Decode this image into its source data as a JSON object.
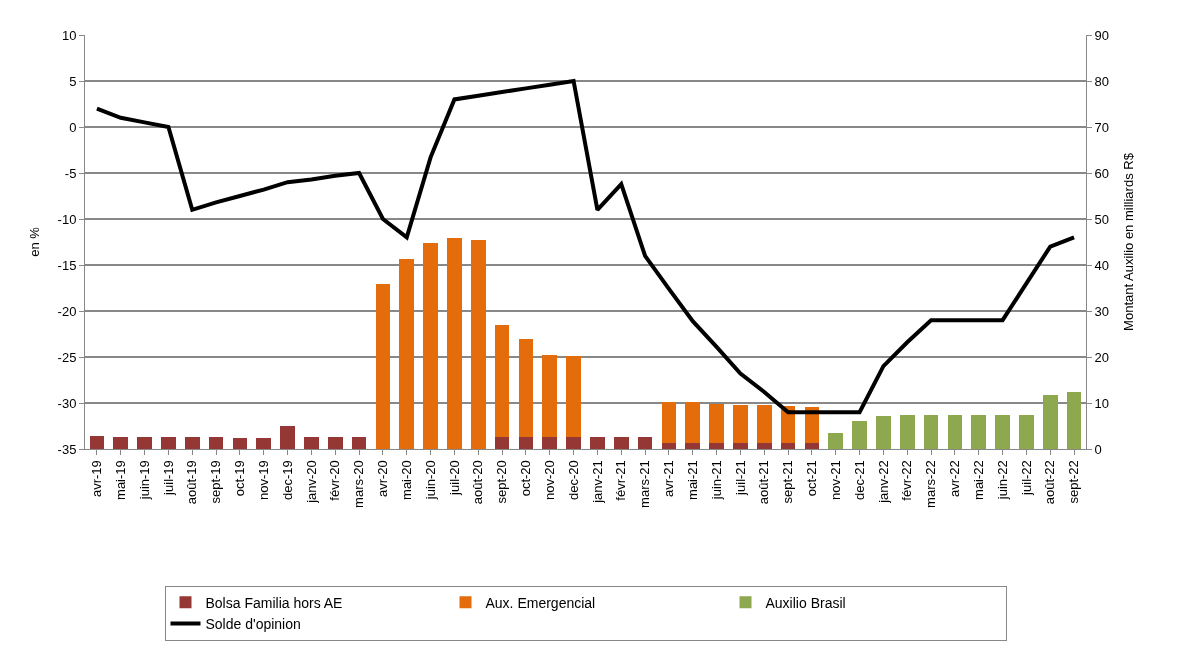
{
  "chart_data": {
    "type": "bar",
    "stacked": true,
    "categories": [
      "avr-19",
      "mai-19",
      "juin-19",
      "juil-19",
      "août-19",
      "sept-19",
      "oct-19",
      "nov-19",
      "dec-19",
      "janv-20",
      "févr-20",
      "mars-20",
      "avr-20",
      "mai-20",
      "juin-20",
      "juil-20",
      "août-20",
      "sept-20",
      "oct-20",
      "nov-20",
      "dec-20",
      "janv-21",
      "févr-21",
      "mars-21",
      "avr-21",
      "mai-21",
      "juin-21",
      "juil-21",
      "août-21",
      "sept-21",
      "oct-21",
      "nov-21",
      "dec-21",
      "janv-22",
      "févr-22",
      "mars-22",
      "avr-22",
      "mai-22",
      "juin-22",
      "juil-22",
      "août-22",
      "sept-22"
    ],
    "series": [
      {
        "name": "Bolsa Familia hors AE",
        "color": "#953735",
        "axis": "y2",
        "values": [
          2.9,
          2.7,
          2.7,
          2.6,
          2.6,
          2.6,
          2.5,
          2.5,
          5.0,
          2.6,
          2.6,
          2.6,
          0.1,
          0.1,
          0,
          0,
          0,
          2.7,
          2.7,
          2.7,
          2.7,
          2.6,
          2.6,
          2.7,
          1.3,
          1.3,
          1.3,
          1.3,
          1.3,
          1.3,
          1.3,
          0,
          0,
          0,
          0,
          0,
          0,
          0,
          0,
          0,
          0,
          0
        ]
      },
      {
        "name": "Aux. Emergencial",
        "color": "#e46c0a",
        "axis": "y2",
        "values": [
          0,
          0,
          0,
          0,
          0,
          0,
          0,
          0,
          0,
          0,
          0,
          0,
          35.8,
          41.1,
          44.7,
          45.9,
          45.5,
          24.2,
          21.2,
          17.7,
          17.5,
          0,
          0,
          0,
          8.9,
          8.9,
          8.5,
          8.3,
          8.3,
          8.1,
          7.9,
          0,
          0,
          0,
          0,
          0,
          0,
          0,
          0,
          0,
          0,
          0
        ]
      },
      {
        "name": "Auxilio Brasil",
        "color": "#8ea84f",
        "axis": "y2",
        "values": [
          0,
          0,
          0,
          0,
          0,
          0,
          0,
          0,
          0,
          0,
          0,
          0,
          0,
          0,
          0,
          0,
          0,
          0,
          0,
          0,
          0,
          0,
          0,
          0,
          0,
          0,
          0,
          0,
          0,
          0,
          0,
          3.4,
          6.1,
          7.2,
          7.3,
          7.4,
          7.4,
          7.4,
          7.3,
          7.3,
          11.8,
          12.4
        ]
      },
      {
        "name": "Solde d'opinion",
        "type": "line",
        "color": "#000000",
        "axis": "y",
        "values": [
          2,
          1,
          0.5,
          0,
          -9,
          -8.2,
          -7.5,
          -6.8,
          -6,
          -5.7,
          -5.3,
          -5,
          -10,
          -12,
          -3.3,
          3,
          3.4,
          3.8,
          4.2,
          4.6,
          5,
          -9,
          -6.2,
          -14,
          -17.6,
          -21.1,
          -23.9,
          -26.8,
          -28.8,
          -31,
          -31,
          -31,
          -31,
          -26,
          -23.4,
          -21,
          -21,
          -21,
          -21,
          -17,
          -13,
          -12
        ]
      }
    ],
    "ylabel": "en %",
    "y2label": "Montant Auxilio en milliards R$",
    "ylim": [
      -35,
      10
    ],
    "yticks": [
      -35,
      -30,
      -25,
      -20,
      -15,
      -10,
      -5,
      0,
      5,
      10
    ],
    "y2lim": [
      0,
      90
    ],
    "y2ticks": [
      0,
      10,
      20,
      30,
      40,
      50,
      60,
      70,
      80,
      90
    ],
    "grid": "y",
    "legend": "bottom",
    "marker": "none",
    "line_style": "solid"
  }
}
